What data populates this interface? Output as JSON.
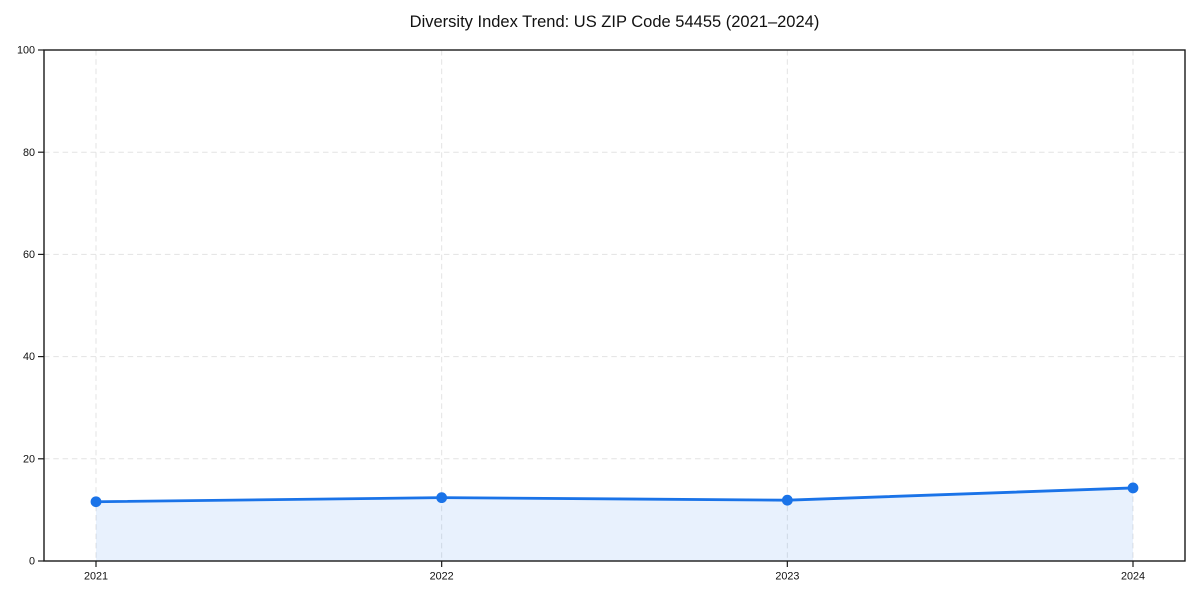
{
  "figure": {
    "background": "#ffffff",
    "text_color": "#111111",
    "spine_color": "#1a1a1a"
  },
  "chart_data": {
    "type": "line",
    "title": "Diversity Index Trend: US ZIP Code 54455 (2021–2024)",
    "xlabel": "",
    "ylabel": "",
    "categories": [
      "2021",
      "2022",
      "2023",
      "2024"
    ],
    "series": [
      {
        "name": "Diversity Index",
        "values": [
          11.6,
          12.4,
          11.9,
          14.3
        ],
        "color": "#1a73e8",
        "fill_color": "rgba(26, 115, 232, 0.10)",
        "marker": "circle",
        "area_fill": true
      }
    ],
    "ylim": [
      0,
      100
    ],
    "yticks": [
      0,
      20,
      40,
      60,
      80,
      100
    ],
    "grid": true,
    "grid_style": "dashed",
    "grid_color": "#e3e3e3",
    "legend_position": "none"
  }
}
